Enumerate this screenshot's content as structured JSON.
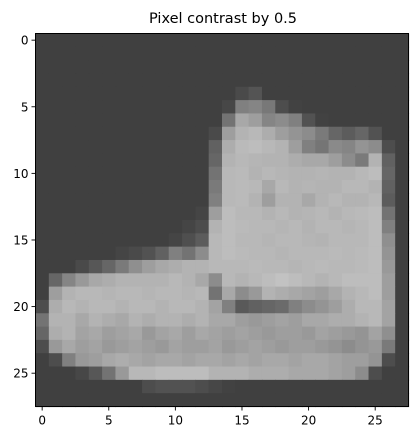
{
  "chart_data": {
    "type": "heatmap",
    "title": "Pixel contrast by 0.5",
    "xlabel": "",
    "ylabel": "",
    "colormap": "gray",
    "grid": false,
    "x_ticks": [
      0,
      5,
      10,
      15,
      20,
      25
    ],
    "y_ticks": [
      0,
      5,
      10,
      15,
      20,
      25
    ],
    "xlim": [
      -0.5,
      27.5
    ],
    "ylim": [
      27.5,
      -0.5
    ],
    "value_range": [
      0,
      1
    ],
    "background_value": 0.25,
    "grid_size": [
      28,
      28
    ],
    "rows": [
      [
        0.25,
        0.25,
        0.25,
        0.25,
        0.25,
        0.25,
        0.25,
        0.25,
        0.25,
        0.25,
        0.25,
        0.25,
        0.25,
        0.25,
        0.25,
        0.25,
        0.25,
        0.25,
        0.25,
        0.25,
        0.25,
        0.25,
        0.25,
        0.25,
        0.25,
        0.25,
        0.25,
        0.25
      ],
      [
        0.25,
        0.25,
        0.25,
        0.25,
        0.25,
        0.25,
        0.25,
        0.25,
        0.25,
        0.25,
        0.25,
        0.25,
        0.25,
        0.25,
        0.25,
        0.25,
        0.25,
        0.25,
        0.25,
        0.25,
        0.25,
        0.25,
        0.25,
        0.25,
        0.25,
        0.25,
        0.25,
        0.25
      ],
      [
        0.25,
        0.25,
        0.25,
        0.25,
        0.25,
        0.25,
        0.25,
        0.25,
        0.25,
        0.25,
        0.25,
        0.25,
        0.25,
        0.25,
        0.25,
        0.25,
        0.25,
        0.25,
        0.25,
        0.25,
        0.25,
        0.25,
        0.25,
        0.25,
        0.25,
        0.25,
        0.25,
        0.25
      ],
      [
        0.25,
        0.25,
        0.25,
        0.25,
        0.25,
        0.25,
        0.25,
        0.25,
        0.25,
        0.25,
        0.25,
        0.25,
        0.25,
        0.25,
        0.25,
        0.25,
        0.25,
        0.25,
        0.25,
        0.25,
        0.25,
        0.25,
        0.25,
        0.25,
        0.25,
        0.25,
        0.25,
        0.25
      ],
      [
        0.25,
        0.25,
        0.25,
        0.25,
        0.25,
        0.25,
        0.25,
        0.25,
        0.25,
        0.25,
        0.25,
        0.25,
        0.25,
        0.25,
        0.25,
        0.29,
        0.33,
        0.25,
        0.25,
        0.25,
        0.25,
        0.25,
        0.25,
        0.25,
        0.25,
        0.25,
        0.25,
        0.25
      ],
      [
        0.25,
        0.25,
        0.25,
        0.25,
        0.25,
        0.25,
        0.25,
        0.25,
        0.25,
        0.25,
        0.25,
        0.25,
        0.25,
        0.25,
        0.28,
        0.5,
        0.52,
        0.47,
        0.3,
        0.26,
        0.25,
        0.25,
        0.25,
        0.25,
        0.25,
        0.25,
        0.25,
        0.25
      ],
      [
        0.25,
        0.25,
        0.25,
        0.25,
        0.25,
        0.25,
        0.25,
        0.25,
        0.25,
        0.25,
        0.25,
        0.25,
        0.25,
        0.25,
        0.45,
        0.66,
        0.62,
        0.52,
        0.55,
        0.5,
        0.32,
        0.26,
        0.25,
        0.25,
        0.25,
        0.25,
        0.25,
        0.25
      ],
      [
        0.25,
        0.25,
        0.25,
        0.25,
        0.25,
        0.25,
        0.25,
        0.25,
        0.25,
        0.25,
        0.25,
        0.25,
        0.25,
        0.29,
        0.62,
        0.7,
        0.72,
        0.68,
        0.62,
        0.58,
        0.55,
        0.48,
        0.4,
        0.36,
        0.4,
        0.32,
        0.25,
        0.25
      ],
      [
        0.25,
        0.25,
        0.25,
        0.25,
        0.25,
        0.25,
        0.25,
        0.25,
        0.25,
        0.25,
        0.25,
        0.25,
        0.25,
        0.38,
        0.68,
        0.73,
        0.74,
        0.72,
        0.7,
        0.62,
        0.5,
        0.46,
        0.54,
        0.52,
        0.58,
        0.55,
        0.3,
        0.25
      ],
      [
        0.25,
        0.25,
        0.25,
        0.25,
        0.25,
        0.25,
        0.25,
        0.25,
        0.25,
        0.25,
        0.25,
        0.25,
        0.25,
        0.4,
        0.7,
        0.72,
        0.71,
        0.7,
        0.7,
        0.68,
        0.66,
        0.66,
        0.62,
        0.55,
        0.48,
        0.7,
        0.38,
        0.25
      ],
      [
        0.25,
        0.25,
        0.25,
        0.25,
        0.25,
        0.25,
        0.25,
        0.25,
        0.25,
        0.25,
        0.25,
        0.25,
        0.25,
        0.45,
        0.72,
        0.73,
        0.7,
        0.72,
        0.71,
        0.7,
        0.7,
        0.71,
        0.7,
        0.7,
        0.72,
        0.74,
        0.4,
        0.25
      ],
      [
        0.25,
        0.25,
        0.25,
        0.25,
        0.25,
        0.25,
        0.25,
        0.25,
        0.25,
        0.25,
        0.25,
        0.25,
        0.25,
        0.48,
        0.72,
        0.73,
        0.72,
        0.66,
        0.72,
        0.7,
        0.71,
        0.7,
        0.7,
        0.72,
        0.72,
        0.7,
        0.38,
        0.25
      ],
      [
        0.25,
        0.25,
        0.25,
        0.25,
        0.25,
        0.25,
        0.25,
        0.25,
        0.25,
        0.25,
        0.25,
        0.25,
        0.25,
        0.5,
        0.72,
        0.73,
        0.7,
        0.62,
        0.7,
        0.7,
        0.66,
        0.7,
        0.72,
        0.7,
        0.7,
        0.72,
        0.36,
        0.25
      ],
      [
        0.25,
        0.25,
        0.25,
        0.25,
        0.25,
        0.25,
        0.25,
        0.25,
        0.25,
        0.25,
        0.25,
        0.25,
        0.27,
        0.62,
        0.74,
        0.72,
        0.72,
        0.7,
        0.72,
        0.7,
        0.71,
        0.72,
        0.7,
        0.72,
        0.73,
        0.74,
        0.45,
        0.25
      ],
      [
        0.25,
        0.25,
        0.25,
        0.25,
        0.25,
        0.25,
        0.25,
        0.25,
        0.25,
        0.25,
        0.25,
        0.27,
        0.3,
        0.7,
        0.74,
        0.73,
        0.72,
        0.72,
        0.71,
        0.72,
        0.7,
        0.72,
        0.72,
        0.71,
        0.72,
        0.74,
        0.5,
        0.25
      ],
      [
        0.25,
        0.25,
        0.25,
        0.25,
        0.25,
        0.25,
        0.25,
        0.25,
        0.25,
        0.25,
        0.27,
        0.31,
        0.36,
        0.72,
        0.74,
        0.72,
        0.72,
        0.71,
        0.72,
        0.72,
        0.71,
        0.7,
        0.72,
        0.72,
        0.72,
        0.74,
        0.56,
        0.25
      ],
      [
        0.25,
        0.25,
        0.25,
        0.25,
        0.25,
        0.25,
        0.27,
        0.29,
        0.32,
        0.38,
        0.5,
        0.45,
        0.55,
        0.72,
        0.74,
        0.73,
        0.72,
        0.72,
        0.71,
        0.72,
        0.72,
        0.72,
        0.73,
        0.72,
        0.73,
        0.74,
        0.58,
        0.25
      ],
      [
        0.25,
        0.25,
        0.25,
        0.29,
        0.34,
        0.4,
        0.48,
        0.56,
        0.62,
        0.66,
        0.68,
        0.7,
        0.7,
        0.72,
        0.72,
        0.72,
        0.73,
        0.72,
        0.72,
        0.71,
        0.72,
        0.73,
        0.72,
        0.72,
        0.73,
        0.74,
        0.6,
        0.25
      ],
      [
        0.25,
        0.4,
        0.52,
        0.6,
        0.66,
        0.68,
        0.7,
        0.7,
        0.7,
        0.7,
        0.72,
        0.7,
        0.66,
        0.55,
        0.72,
        0.7,
        0.72,
        0.74,
        0.76,
        0.74,
        0.72,
        0.7,
        0.72,
        0.74,
        0.74,
        0.74,
        0.62,
        0.25
      ],
      [
        0.25,
        0.62,
        0.7,
        0.72,
        0.72,
        0.71,
        0.72,
        0.72,
        0.71,
        0.72,
        0.72,
        0.71,
        0.72,
        0.45,
        0.66,
        0.55,
        0.6,
        0.7,
        0.68,
        0.66,
        0.64,
        0.62,
        0.66,
        0.7,
        0.72,
        0.74,
        0.62,
        0.25
      ],
      [
        0.3,
        0.68,
        0.72,
        0.7,
        0.72,
        0.72,
        0.7,
        0.72,
        0.72,
        0.7,
        0.72,
        0.72,
        0.7,
        0.64,
        0.5,
        0.35,
        0.38,
        0.4,
        0.42,
        0.5,
        0.55,
        0.58,
        0.62,
        0.68,
        0.72,
        0.72,
        0.64,
        0.25
      ],
      [
        0.45,
        0.7,
        0.7,
        0.66,
        0.7,
        0.68,
        0.66,
        0.7,
        0.68,
        0.7,
        0.7,
        0.68,
        0.7,
        0.66,
        0.66,
        0.62,
        0.6,
        0.62,
        0.64,
        0.62,
        0.66,
        0.66,
        0.68,
        0.68,
        0.7,
        0.72,
        0.64,
        0.25
      ],
      [
        0.4,
        0.68,
        0.7,
        0.64,
        0.66,
        0.62,
        0.64,
        0.66,
        0.6,
        0.64,
        0.66,
        0.62,
        0.66,
        0.64,
        0.62,
        0.64,
        0.62,
        0.6,
        0.62,
        0.62,
        0.6,
        0.64,
        0.62,
        0.6,
        0.58,
        0.64,
        0.56,
        0.25
      ],
      [
        0.3,
        0.6,
        0.66,
        0.62,
        0.64,
        0.6,
        0.62,
        0.64,
        0.62,
        0.6,
        0.64,
        0.62,
        0.62,
        0.64,
        0.6,
        0.62,
        0.64,
        0.62,
        0.6,
        0.62,
        0.62,
        0.6,
        0.58,
        0.55,
        0.58,
        0.6,
        0.48,
        0.25
      ],
      [
        0.25,
        0.3,
        0.5,
        0.6,
        0.62,
        0.66,
        0.68,
        0.66,
        0.64,
        0.66,
        0.66,
        0.64,
        0.66,
        0.66,
        0.64,
        0.66,
        0.64,
        0.66,
        0.66,
        0.64,
        0.66,
        0.66,
        0.64,
        0.62,
        0.62,
        0.58,
        0.3,
        0.25
      ],
      [
        0.25,
        0.25,
        0.25,
        0.28,
        0.34,
        0.45,
        0.6,
        0.72,
        0.72,
        0.74,
        0.74,
        0.74,
        0.74,
        0.7,
        0.7,
        0.7,
        0.68,
        0.68,
        0.68,
        0.66,
        0.66,
        0.66,
        0.64,
        0.62,
        0.55,
        0.3,
        0.25,
        0.25
      ],
      [
        0.25,
        0.25,
        0.25,
        0.25,
        0.25,
        0.25,
        0.25,
        0.25,
        0.3,
        0.32,
        0.32,
        0.32,
        0.3,
        0.28,
        0.26,
        0.25,
        0.25,
        0.25,
        0.25,
        0.25,
        0.25,
        0.25,
        0.25,
        0.25,
        0.25,
        0.25,
        0.25,
        0.25
      ],
      [
        0.25,
        0.25,
        0.25,
        0.25,
        0.25,
        0.25,
        0.25,
        0.25,
        0.25,
        0.25,
        0.25,
        0.25,
        0.25,
        0.25,
        0.25,
        0.25,
        0.25,
        0.25,
        0.25,
        0.25,
        0.25,
        0.25,
        0.25,
        0.25,
        0.25,
        0.25,
        0.25,
        0.25
      ]
    ]
  }
}
